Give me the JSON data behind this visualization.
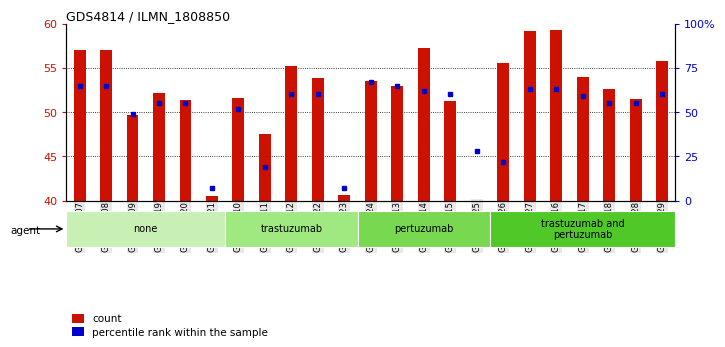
{
  "title": "GDS4814 / ILMN_1808850",
  "samples": [
    "GSM780707",
    "GSM780708",
    "GSM780709",
    "GSM780719",
    "GSM780720",
    "GSM780721",
    "GSM780710",
    "GSM780711",
    "GSM780712",
    "GSM780722",
    "GSM780723",
    "GSM780724",
    "GSM780713",
    "GSM780714",
    "GSM780715",
    "GSM780725",
    "GSM780726",
    "GSM780727",
    "GSM780716",
    "GSM780717",
    "GSM780718",
    "GSM780728",
    "GSM780729"
  ],
  "count_values": [
    57.0,
    57.0,
    49.7,
    52.2,
    51.4,
    40.5,
    51.6,
    47.5,
    55.2,
    53.8,
    40.6,
    53.5,
    53.0,
    57.3,
    51.2,
    40.0,
    55.5,
    59.2,
    59.3,
    54.0,
    52.6,
    51.5,
    55.8
  ],
  "percentile_values": [
    65,
    65,
    49,
    55,
    55,
    7,
    52,
    19,
    60,
    60,
    7,
    67,
    65,
    62,
    60,
    28,
    22,
    63,
    63,
    59,
    55,
    55,
    60
  ],
  "groups": [
    {
      "label": "none",
      "start": 0,
      "end": 6,
      "color": "#c8f0b4"
    },
    {
      "label": "trastuzumab",
      "start": 6,
      "end": 11,
      "color": "#a0e880"
    },
    {
      "label": "pertuzumab",
      "start": 11,
      "end": 16,
      "color": "#78d850"
    },
    {
      "label": "trastuzumab and\npertuzumab",
      "start": 16,
      "end": 23,
      "color": "#50c828"
    }
  ],
  "ylim_left": [
    40,
    60
  ],
  "yticks_left": [
    40,
    45,
    50,
    55,
    60
  ],
  "ylim_right": [
    0,
    100
  ],
  "yticks_right": [
    0,
    25,
    50,
    75,
    100
  ],
  "bar_color": "#cc1100",
  "dot_color": "#0000cc",
  "bar_width": 0.45,
  "legend_count_label": "count",
  "legend_pct_label": "percentile rank within the sample",
  "agent_label": "agent",
  "left_axis_color": "#cc1100",
  "right_axis_color": "#0000cc",
  "fig_width": 7.04,
  "fig_height": 3.54,
  "fig_dpi": 100
}
